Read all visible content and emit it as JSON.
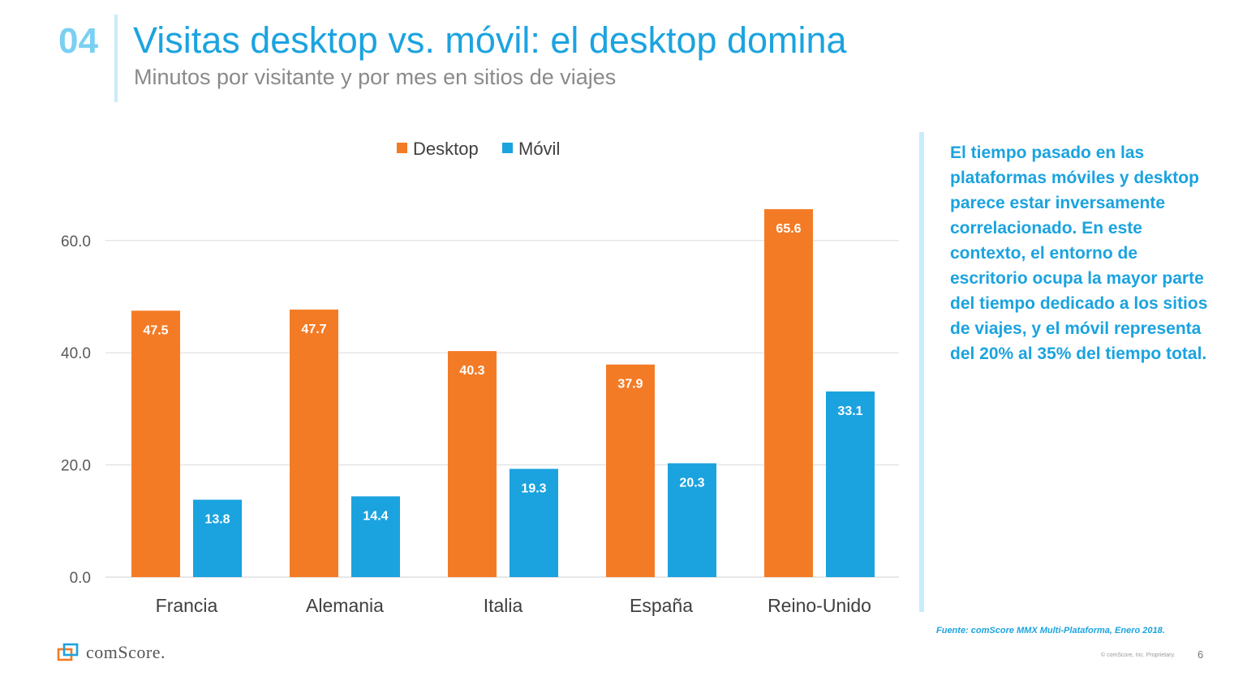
{
  "header": {
    "number": "04",
    "title": "Visitas desktop vs. móvil: el desktop domina",
    "subtitle": "Minutos por visitante y por mes en sitios de viajes"
  },
  "chart_data": {
    "type": "bar",
    "categories": [
      "Francia",
      "Alemania",
      "Italia",
      "España",
      "Reino-Unido"
    ],
    "series": [
      {
        "name": "Desktop",
        "values": [
          47.5,
          47.7,
          40.3,
          37.9,
          65.6
        ],
        "labels": [
          "47.5",
          "47.7",
          "40.3",
          "37.9",
          "65.6"
        ],
        "color": "#f47b25"
      },
      {
        "name": "Móvil",
        "values": [
          13.8,
          14.4,
          19.3,
          20.3,
          33.1
        ],
        "labels": [
          "13.8",
          "14.4",
          "19.3",
          "20.3",
          "33.1"
        ],
        "color": "#1ba3df"
      }
    ],
    "yticks": [
      0,
      20,
      40,
      60
    ],
    "ytick_labels": [
      "0.0",
      "20.0",
      "40.0",
      "60.0"
    ],
    "ylim": [
      0,
      70
    ],
    "grid": true,
    "legend": "top-center",
    "data_label_color": "#ffffff"
  },
  "sidebar": {
    "text": "El tiempo pasado en las plataformas móviles y desktop parece estar inversamente correlacionado. En este contexto, el entorno de escritorio ocupa la mayor parte del tiempo dedicado a los sitios de viajes, y el móvil representa del 20% al 35% del tiempo total."
  },
  "footer": {
    "source": "Fuente: comScore MMX Multi-Plataforma, Enero 2018.",
    "logo_text": "comScore.",
    "copyright": "© comScore, Inc. Proprietary.",
    "page": "6"
  },
  "colors": {
    "accent": "#1ba3df",
    "desktop": "#f47b25",
    "mobile": "#1ba3df"
  }
}
